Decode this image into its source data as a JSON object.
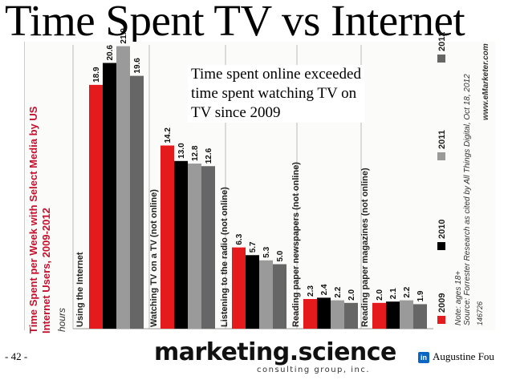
{
  "title": "Time Spent TV vs Internet",
  "annotation": {
    "lines": [
      "Time spent online exceeded",
      "time spent watching TV on",
      "TV since 2009"
    ]
  },
  "footer": {
    "page": "- 42 -",
    "brand": "marketing.science",
    "brand_sub": "consulting group, inc.",
    "linkedin_icon": "in",
    "author": "Augustine Fou"
  },
  "chart_data": {
    "type": "bar",
    "title": "Time Spent per Week with Select Media by US Internet Users, 2009-2012",
    "unit_label": "hours",
    "categories": [
      "Using the Internet",
      "Watching TV on a TV (not online)",
      "Listening to the radio (not online)",
      "Reading paper newspapers (not online)",
      "Reading paper magazines (not online)"
    ],
    "series": [
      {
        "name": "2009",
        "color": "#e41a1c",
        "values": [
          18.9,
          14.2,
          6.3,
          2.3,
          2.0
        ]
      },
      {
        "name": "2010",
        "color": "#000000",
        "values": [
          20.6,
          13.0,
          5.7,
          2.4,
          2.1
        ]
      },
      {
        "name": "2011",
        "color": "#9a9a9a",
        "values": [
          21.9,
          12.8,
          5.3,
          2.2,
          2.2
        ]
      },
      {
        "name": "2012",
        "color": "#666666",
        "values": [
          19.6,
          12.6,
          5.0,
          2.0,
          1.9
        ]
      }
    ],
    "ylim": [
      0,
      22
    ],
    "legend_position": "right",
    "note": "Note: ages 18+",
    "source": "Source: Forrester Research as cited by All Things Digital, Oct 18, 2012",
    "code": "146726",
    "site": "www.eMarketer.com"
  }
}
